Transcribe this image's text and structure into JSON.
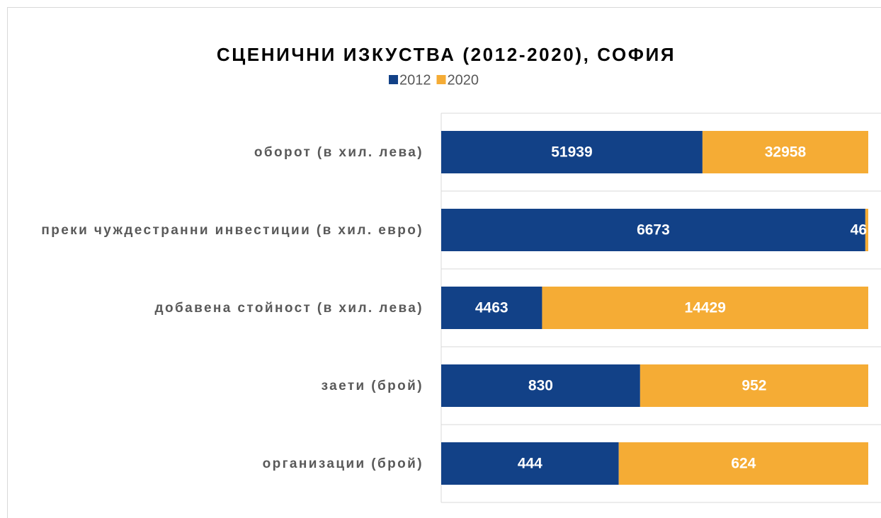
{
  "chart_data": {
    "type": "bar",
    "orientation": "horizontal",
    "stacking": "percent",
    "title": "СЦЕНИЧНИ ИЗКУСТВА (2012-2020), СОФИЯ",
    "legend": "top",
    "categories": [
      "оборот (в хил. лева)",
      "преки чуждестранни инвестиции (в хил. евро)",
      "добавена стойност (в хил. лева)",
      "заети (брой)",
      "организации (брой)"
    ],
    "series": [
      {
        "name": "2012",
        "color": "#124187",
        "values": [
          51939,
          6673,
          4463,
          830,
          444
        ]
      },
      {
        "name": "2020",
        "color": "#f5ac35",
        "values": [
          32958,
          46,
          14429,
          952,
          624
        ]
      }
    ]
  }
}
